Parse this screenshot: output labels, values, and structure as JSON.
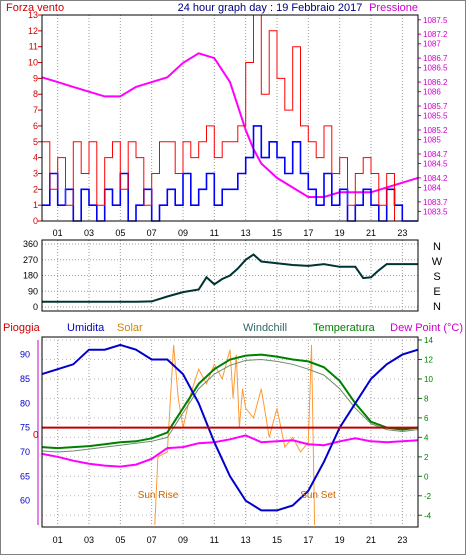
{
  "title": "24 hour graph day : 19 Febbraio 2017",
  "chart_data": [
    {
      "type": "line",
      "left_label": "Forza vento",
      "right_label": "Pressione",
      "x_ticks": [
        "01",
        "03",
        "05",
        "07",
        "09",
        "11",
        "13",
        "15",
        "17",
        "19",
        "21",
        "23"
      ],
      "left_ticks": [
        "0",
        "1",
        "2",
        "3",
        "4",
        "5",
        "6",
        "7",
        "8",
        "9",
        "10",
        "11",
        "12",
        "13"
      ],
      "right_ticks": [
        "1083.5",
        "1083.7",
        "1084",
        "1084.2",
        "1084.5",
        "1084.7",
        "1085",
        "1085.2",
        "1085.5",
        "1085.7",
        "1086",
        "1086.2",
        "1086.5",
        "1086.7",
        "1087",
        "1087.2",
        "1087.5"
      ],
      "ylim_left": [
        0,
        13
      ],
      "ylim_right": [
        1083.3,
        1087.6
      ],
      "colors": {
        "gust": "#ff0000",
        "wind": "#0000ff",
        "pressure": "#ff00ff"
      },
      "series": [
        {
          "key": "pressure",
          "x": [
            0,
            1,
            2,
            3,
            4,
            5,
            6,
            7,
            8,
            9,
            10,
            11,
            12,
            13,
            13.5,
            14,
            15,
            16,
            17,
            18,
            19,
            20,
            21,
            22,
            23,
            24
          ],
          "values": [
            1086.3,
            1086.2,
            1086.1,
            1086.0,
            1085.9,
            1085.9,
            1086.1,
            1086.2,
            1086.3,
            1086.6,
            1086.8,
            1086.7,
            1086.2,
            1085.2,
            1084.8,
            1084.5,
            1084.2,
            1084.0,
            1083.8,
            1083.8,
            1083.9,
            1083.9,
            1083.9,
            1084.0,
            1084.1,
            1084.2
          ]
        },
        {
          "key": "wind",
          "x": [
            0,
            0.5,
            1,
            1.5,
            2,
            2.5,
            3,
            3.5,
            4,
            4.5,
            5,
            5.5,
            6,
            6.5,
            7,
            7.5,
            8,
            8.5,
            9,
            9.5,
            10,
            10.5,
            11,
            11.5,
            12,
            12.5,
            13,
            13.5,
            14,
            14.5,
            15,
            15.5,
            16,
            16.5,
            17,
            17.5,
            18,
            18.5,
            19,
            19.5,
            20,
            20.5,
            21,
            21.5,
            22,
            22.5,
            23,
            23.5
          ],
          "values": [
            1,
            3,
            1,
            2,
            0,
            2,
            1,
            0,
            2,
            1,
            3,
            0,
            1,
            2,
            0,
            1,
            2,
            1,
            3,
            1,
            2,
            3,
            1,
            2,
            2,
            3,
            4,
            6,
            4,
            5,
            4,
            3,
            5,
            3,
            2,
            1,
            3,
            1,
            2,
            0,
            1,
            2,
            1,
            0,
            2,
            1,
            0,
            0
          ]
        },
        {
          "key": "gust",
          "x": [
            0,
            0.5,
            1,
            1.5,
            2,
            2.5,
            3,
            3.5,
            4,
            4.5,
            5,
            5.5,
            6,
            6.5,
            7,
            7.5,
            8,
            8.5,
            9,
            9.5,
            10,
            10.5,
            11,
            11.5,
            12,
            12.5,
            13,
            13.5,
            14,
            14.5,
            15,
            15.5,
            16,
            16.5,
            17,
            17.5,
            18,
            18.5,
            19,
            19.5,
            20,
            20.5,
            21,
            21.5,
            22,
            22.5,
            23,
            23.5
          ],
          "values": [
            5,
            2,
            4,
            1,
            5,
            3,
            5,
            1,
            4,
            5,
            2,
            5,
            4,
            1,
            3,
            5,
            5,
            3,
            5,
            4,
            5,
            6,
            4,
            5,
            5,
            6,
            10,
            13,
            8,
            12,
            9,
            7,
            11,
            6,
            5,
            4,
            6,
            3,
            4,
            1,
            3,
            4,
            3,
            1,
            3,
            0,
            0,
            0
          ]
        }
      ]
    },
    {
      "type": "line",
      "left_ticks": [
        "0",
        "90",
        "180",
        "270",
        "360"
      ],
      "right_labels": [
        "N",
        "W",
        "S",
        "E",
        "N"
      ],
      "x_ticks": [
        "01",
        "03",
        "05",
        "07",
        "09",
        "11",
        "13",
        "15",
        "17",
        "19",
        "21",
        "23"
      ],
      "ylim": [
        0,
        360
      ],
      "color": "#003333",
      "series": [
        {
          "key": "direction",
          "x": [
            0,
            1,
            2,
            3,
            4,
            5,
            6,
            7,
            8,
            9,
            10,
            10.5,
            11,
            11.5,
            12,
            12.5,
            13,
            13.5,
            14,
            15,
            16,
            17,
            18,
            19,
            20,
            20.5,
            21,
            21.5,
            22,
            23,
            24
          ],
          "values": [
            30,
            30,
            30,
            30,
            30,
            30,
            30,
            32,
            60,
            85,
            100,
            170,
            130,
            160,
            180,
            220,
            270,
            300,
            260,
            250,
            240,
            235,
            245,
            230,
            230,
            165,
            170,
            210,
            245,
            245,
            245
          ]
        }
      ]
    },
    {
      "type": "line",
      "labels": {
        "rain": "Pioggia",
        "humidity": "Umidita",
        "solar": "Solar",
        "windchill": "Windchill",
        "temperature": "Temperatura",
        "dewpoint": "Dew Point (°C)"
      },
      "x_ticks": [
        "01",
        "03",
        "05",
        "07",
        "09",
        "11",
        "13",
        "15",
        "17",
        "19",
        "21",
        "23"
      ],
      "left_ticks": [
        "60",
        "65",
        "70",
        "75",
        "80",
        "85",
        "90"
      ],
      "right_ticks": [
        "-4",
        "-2",
        "0",
        "2",
        "4",
        "6",
        "8",
        "10",
        "12",
        "14"
      ],
      "rain_label": "0",
      "annotations": [
        "Sun Rise",
        "Sun Set"
      ],
      "ylim_left": [
        55,
        93
      ],
      "ylim_right": [
        -5,
        14
      ],
      "colors": {
        "rain": "#c00000",
        "humidity": "#0000cc",
        "solar": "#ff9933",
        "windchill": "#6b8e6b",
        "temperature": "#008000",
        "dewpoint": "#ff00ff"
      },
      "series": [
        {
          "key": "humidity",
          "axis": "left",
          "x": [
            0,
            1,
            2,
            3,
            4,
            5,
            6,
            7,
            8,
            9,
            10,
            11,
            12,
            13,
            14,
            15,
            16,
            17,
            18,
            19,
            20,
            21,
            22,
            23,
            24
          ],
          "values": [
            86,
            87,
            88,
            91,
            91,
            92,
            91,
            89,
            89,
            86,
            80,
            72,
            65,
            60,
            58,
            58,
            59,
            62,
            68,
            75,
            80,
            85,
            88,
            90,
            91
          ]
        },
        {
          "key": "temperature",
          "axis": "right",
          "x": [
            0,
            1,
            2,
            3,
            4,
            5,
            6,
            7,
            8,
            9,
            10,
            11,
            12,
            13,
            14,
            15,
            16,
            17,
            18,
            19,
            20,
            21,
            22,
            23,
            24
          ],
          "values": [
            3.0,
            2.9,
            3.0,
            3.1,
            3.3,
            3.5,
            3.6,
            3.9,
            4.5,
            7.0,
            9.5,
            11.0,
            12.0,
            12.4,
            12.5,
            12.3,
            12.0,
            11.8,
            11.2,
            9.8,
            7.5,
            5.6,
            5.0,
            4.8,
            5.0
          ]
        },
        {
          "key": "windchill",
          "axis": "right",
          "x": [
            0,
            1,
            2,
            3,
            4,
            5,
            6,
            7,
            8,
            9,
            10,
            11,
            12,
            13,
            14,
            15,
            16,
            17,
            18,
            19,
            20,
            21,
            22,
            23,
            24
          ],
          "values": [
            2.6,
            2.5,
            2.6,
            2.8,
            3.0,
            3.2,
            3.4,
            3.6,
            4.0,
            6.5,
            9.0,
            10.5,
            11.4,
            11.9,
            12.0,
            11.8,
            11.5,
            11.0,
            10.4,
            9.0,
            7.0,
            5.4,
            4.8,
            4.6,
            4.8
          ]
        },
        {
          "key": "dewpoint",
          "axis": "right",
          "x": [
            0,
            1,
            2,
            3,
            4,
            5,
            6,
            7,
            8,
            9,
            10,
            11,
            12,
            13,
            14,
            15,
            16,
            17,
            18,
            19,
            20,
            21,
            22,
            23,
            24
          ],
          "values": [
            2.3,
            2.0,
            1.6,
            1.3,
            1.1,
            1.0,
            1.2,
            1.8,
            2.9,
            3.0,
            3.4,
            3.5,
            3.8,
            4.2,
            3.5,
            3.6,
            3.7,
            3.3,
            3.2,
            3.6,
            3.9,
            3.6,
            3.5,
            3.6,
            3.7
          ]
        },
        {
          "key": "solar",
          "axis": "right",
          "x": [
            7.2,
            7.4,
            8.0,
            8.4,
            8.7,
            9.0,
            9.5,
            10.0,
            10.5,
            11.0,
            11.5,
            12.0,
            12.2,
            12.4,
            12.6,
            12.8,
            13.0,
            13.5,
            14.0,
            14.5,
            15.0,
            15.5,
            16.0,
            16.5,
            17.0,
            17.2,
            17.4
          ],
          "values": [
            -5.0,
            2.0,
            2.5,
            13.5,
            8.0,
            5.0,
            8.5,
            11.0,
            9.5,
            11.5,
            10.0,
            13.0,
            8.0,
            12.5,
            5.0,
            9.0,
            7.0,
            6.0,
            9.0,
            4.0,
            7.0,
            3.0,
            4.0,
            2.5,
            3.5,
            13.5,
            -5.0
          ]
        },
        {
          "key": "rain",
          "axis": "left",
          "x": [
            0,
            24
          ],
          "values": [
            75,
            75
          ]
        }
      ]
    }
  ]
}
